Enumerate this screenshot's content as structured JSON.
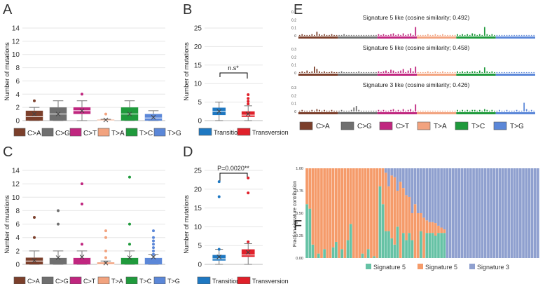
{
  "colors": {
    "ca": "#7b3f2b",
    "cg": "#6f6f6f",
    "ct": "#c0267f",
    "ta": "#f2a37f",
    "tc": "#1f9a3c",
    "tg": "#5b87d8",
    "transition": "#1e78c2",
    "transversion": "#e0202a",
    "sig5a": "#66c2a5",
    "sig5b": "#f59b6a",
    "sig3": "#8fa0cf"
  },
  "panel_letters": [
    "A",
    "B",
    "C",
    "D",
    "E",
    "F"
  ],
  "chart_data": [
    {
      "id": "A",
      "type": "box",
      "ylabel": "Number of mutations",
      "ylim": [
        0,
        14
      ],
      "yticks": [
        0,
        2,
        4,
        6,
        8,
        10,
        12,
        14
      ],
      "boxes": [
        {
          "name": "C>A",
          "color_key": "ca",
          "q1": 0,
          "median": 0.6,
          "q3": 1.5,
          "whisker_low": 0,
          "whisker_high": 2,
          "mean": 1.0,
          "outliers": [
            3
          ]
        },
        {
          "name": "C>G",
          "color_key": "cg",
          "q1": 0,
          "median": 1.0,
          "q3": 2,
          "whisker_low": 0,
          "whisker_high": 3,
          "mean": 1.0,
          "outliers": []
        },
        {
          "name": "C>T",
          "color_key": "ct",
          "q1": 1,
          "median": 1.5,
          "q3": 2,
          "whisker_low": 0,
          "whisker_high": 3,
          "mean": 1.5,
          "outliers": [
            4
          ]
        },
        {
          "name": "T>A",
          "color_key": "ta",
          "q1": 0,
          "median": 0,
          "q3": 0.15,
          "whisker_low": 0,
          "whisker_high": 0.2,
          "mean": 0.1,
          "outliers": [
            1
          ]
        },
        {
          "name": "T>C",
          "color_key": "tc",
          "q1": 0,
          "median": 1.0,
          "q3": 2,
          "whisker_low": 0,
          "whisker_high": 3,
          "mean": 1.0,
          "outliers": []
        },
        {
          "name": "T>G",
          "color_key": "tg",
          "q1": 0,
          "median": 0.4,
          "q3": 1,
          "whisker_low": 0,
          "whisker_high": 1.5,
          "mean": 0.5,
          "outliers": []
        }
      ]
    },
    {
      "id": "B",
      "type": "box",
      "ylabel": "Number of mutations",
      "ylim": [
        0,
        25
      ],
      "yticks": [
        0,
        5,
        10,
        15,
        20,
        25
      ],
      "bracket_label": "n.s*",
      "boxes": [
        {
          "name": "Transition",
          "color_key": "transition",
          "q1": 1.5,
          "median": 2.5,
          "q3": 3.5,
          "whisker_low": 0,
          "whisker_high": 5,
          "mean": 2.5,
          "outliers": []
        },
        {
          "name": "Transversion",
          "color_key": "transversion",
          "q1": 1,
          "median": 1.5,
          "q3": 2.5,
          "whisker_low": 0,
          "whisker_high": 4,
          "mean": 1.8,
          "outliers": [
            4.5,
            5.2,
            6,
            7
          ]
        }
      ]
    },
    {
      "id": "C",
      "type": "box",
      "ylabel": "Number of mutations",
      "ylim": [
        0,
        14
      ],
      "yticks": [
        0,
        2,
        4,
        6,
        8,
        10,
        12,
        14
      ],
      "boxes": [
        {
          "name": "C>A",
          "color_key": "ca",
          "q1": 0,
          "median": 0.5,
          "q3": 1,
          "whisker_low": 0,
          "whisker_high": 2,
          "mean": 0.6,
          "outliers": [
            4,
            7
          ]
        },
        {
          "name": "C>G",
          "color_key": "cg",
          "q1": 0,
          "median": 1,
          "q3": 1,
          "whisker_low": 0,
          "whisker_high": 2,
          "mean": 1.0,
          "outliers": [
            6,
            8
          ]
        },
        {
          "name": "C>T",
          "color_key": "ct",
          "q1": 0,
          "median": 1,
          "q3": 1,
          "whisker_low": 0,
          "whisker_high": 2,
          "mean": 1.1,
          "outliers": [
            3,
            9,
            12
          ]
        },
        {
          "name": "T>A",
          "color_key": "ta",
          "q1": 0,
          "median": 0,
          "q3": 0.3,
          "whisker_low": 0,
          "whisker_high": 0.5,
          "mean": 0.2,
          "outliers": [
            1,
            2,
            4,
            5
          ]
        },
        {
          "name": "T>C",
          "color_key": "tc",
          "q1": 0,
          "median": 1,
          "q3": 1,
          "whisker_low": 0,
          "whisker_high": 2,
          "mean": 1.0,
          "outliers": [
            3,
            6,
            13
          ]
        },
        {
          "name": "T>G",
          "color_key": "tg",
          "q1": 0,
          "median": 1,
          "q3": 1,
          "whisker_low": 0,
          "whisker_high": 1.5,
          "mean": 1.1,
          "outliers": [
            1.5,
            2,
            2.5,
            3,
            3.5,
            4,
            5
          ]
        }
      ]
    },
    {
      "id": "D",
      "type": "box",
      "ylabel": "Number of mutations",
      "ylim": [
        0,
        25
      ],
      "yticks": [
        0,
        5,
        10,
        15,
        20,
        25
      ],
      "bracket_label": "P=0.0020**",
      "boxes": [
        {
          "name": "Transition",
          "color_key": "transition",
          "q1": 1,
          "median": 1.5,
          "q3": 2.5,
          "whisker_low": 0,
          "whisker_high": 4,
          "mean": 2.0,
          "outliers": [
            4,
            18,
            22
          ]
        },
        {
          "name": "Transversion",
          "color_key": "transversion",
          "q1": 2,
          "median": 2.5,
          "q3": 4,
          "whisker_low": 0,
          "whisker_high": 5.5,
          "mean": 3.2,
          "outliers": [
            6,
            19,
            23
          ]
        }
      ]
    },
    {
      "id": "E",
      "type": "bar",
      "ylim": [
        0,
        0.3
      ],
      "yticks": [
        0,
        0.1,
        0.2,
        0.3
      ],
      "categories_legend": [
        "C>A",
        "C>G",
        "C>T",
        "T>A",
        "T>C",
        "T>G"
      ],
      "subplots": [
        {
          "title": "Signature 5 like (cosine similarity; 0.492)",
          "values": [
            0.01,
            0.02,
            0.01,
            0.01,
            0.01,
            0.02,
            0.01,
            0.05,
            0.02,
            0.01,
            0.02,
            0.01,
            0.01,
            0.02,
            0.01,
            0.01,
            0.01,
            0.01,
            0.02,
            0.01,
            0.01,
            0.01,
            0.01,
            0.01,
            0.01,
            0.01,
            0.01,
            0.01,
            0.01,
            0.01,
            0.01,
            0.01,
            0.02,
            0.01,
            0.02,
            0.01,
            0.01,
            0.02,
            0.03,
            0.01,
            0.02,
            0.01,
            0.03,
            0.01,
            0.02,
            0.03,
            0.01,
            0.11,
            0.01,
            0.01,
            0.01,
            0.01,
            0.02,
            0.01,
            0.01,
            0.02,
            0.01,
            0.01,
            0.02,
            0.01,
            0.01,
            0.01,
            0.01,
            0.01,
            0.02,
            0.01,
            0.02,
            0.01,
            0.02,
            0.01,
            0.03,
            0.02,
            0.01,
            0.02,
            0.01,
            0.11,
            0.02,
            0.01,
            0.02,
            0.01,
            0.01,
            0.01,
            0.01,
            0.01,
            0.01,
            0.01,
            0.01,
            0.01,
            0.01,
            0.01,
            0.01,
            0.01,
            0.01,
            0.01,
            0.01,
            0.01
          ]
        },
        {
          "title": "Signature 5 like (cosine similarity; 0.458)",
          "values": [
            0.01,
            0.02,
            0.01,
            0.03,
            0.01,
            0.02,
            0.08,
            0.05,
            0.02,
            0.01,
            0.02,
            0.01,
            0.01,
            0.02,
            0.01,
            0.01,
            0.01,
            0.02,
            0.01,
            0.01,
            0.01,
            0.01,
            0.01,
            0.01,
            0.02,
            0.01,
            0.01,
            0.01,
            0.01,
            0.01,
            0.01,
            0.01,
            0.02,
            0.01,
            0.02,
            0.03,
            0.01,
            0.04,
            0.03,
            0.01,
            0.02,
            0.03,
            0.05,
            0.01,
            0.03,
            0.06,
            0.02,
            0.08,
            0.01,
            0.01,
            0.01,
            0.01,
            0.02,
            0.01,
            0.01,
            0.02,
            0.01,
            0.01,
            0.02,
            0.01,
            0.01,
            0.01,
            0.01,
            0.01,
            0.02,
            0.01,
            0.02,
            0.01,
            0.02,
            0.01,
            0.02,
            0.02,
            0.01,
            0.03,
            0.01,
            0.07,
            0.02,
            0.01,
            0.02,
            0.01,
            0.01,
            0.01,
            0.01,
            0.01,
            0.01,
            0.01,
            0.01,
            0.01,
            0.01,
            0.01,
            0.01,
            0.01,
            0.01,
            0.01,
            0.01,
            0.01
          ]
        },
        {
          "title": "Signature 3 like (cosine similarity; 0.426)",
          "values": [
            0.01,
            0.02,
            0.01,
            0.01,
            0.01,
            0.02,
            0.01,
            0.03,
            0.02,
            0.01,
            0.02,
            0.01,
            0.01,
            0.02,
            0.01,
            0.01,
            0.01,
            0.02,
            0.01,
            0.01,
            0.01,
            0.02,
            0.05,
            0.07,
            0.02,
            0.01,
            0.01,
            0.01,
            0.01,
            0.01,
            0.01,
            0.01,
            0.02,
            0.01,
            0.02,
            0.01,
            0.01,
            0.02,
            0.03,
            0.01,
            0.02,
            0.01,
            0.03,
            0.01,
            0.02,
            0.03,
            0.01,
            0.09,
            0.01,
            0.01,
            0.01,
            0.01,
            0.01,
            0.01,
            0.01,
            0.01,
            0.01,
            0.01,
            0.01,
            0.01,
            0.01,
            0.01,
            0.01,
            0.01,
            0.02,
            0.01,
            0.02,
            0.01,
            0.02,
            0.01,
            0.02,
            0.02,
            0.01,
            0.02,
            0.01,
            0.03,
            0.02,
            0.01,
            0.02,
            0.01,
            0.01,
            0.02,
            0.01,
            0.01,
            0.02,
            0.01,
            0.01,
            0.01,
            0.02,
            0.01,
            0.01,
            0.11,
            0.03,
            0.01,
            0.02,
            0.01
          ]
        }
      ]
    },
    {
      "id": "F",
      "type": "stacked_bar",
      "ylabel": "Fraction signature contribution",
      "ylim": [
        0,
        1
      ],
      "yticks": [
        "0.00",
        "0.25",
        "0.50",
        "0.75",
        "1.00"
      ],
      "legend": [
        "Signature 5",
        "Signature 5",
        "Signature 3"
      ],
      "sig5a": [
        0.6,
        0.55,
        0.15,
        0.0,
        0.05,
        0.0,
        0.1,
        0.0,
        0.0,
        0.12,
        0.18,
        0.0,
        0.1,
        0.0,
        0.2,
        0.38,
        0.0,
        0.0,
        0.0,
        0.05,
        0.0,
        0.1,
        0.0,
        0.02,
        0.0,
        0.8,
        0.6,
        0.3,
        0.3,
        0.22,
        0.15,
        0.35,
        0.0,
        0.28,
        0.2,
        0.28,
        0.2,
        0.0,
        0.0,
        0.3,
        0.0,
        0.28,
        0.28,
        0.28,
        0.25,
        0.28,
        0.28,
        0.28,
        0.0,
        0.0,
        0.0,
        0.0,
        0.0,
        0.0,
        0.0,
        0.0,
        0.0,
        0.0,
        0.0,
        0.0,
        0.0,
        0.0,
        0.0,
        0.0,
        0.0,
        0.0,
        0.0,
        0.0,
        0.0,
        0.0,
        0.0,
        0.0,
        0.0,
        0.0,
        0.0,
        0.0,
        0.0,
        0.0,
        0.0,
        0.0
      ],
      "sig5b": [
        0.4,
        0.45,
        0.85,
        1.0,
        0.95,
        1.0,
        0.9,
        1.0,
        1.0,
        0.88,
        0.82,
        1.0,
        0.9,
        1.0,
        0.8,
        0.62,
        1.0,
        1.0,
        1.0,
        0.95,
        1.0,
        0.9,
        1.0,
        0.98,
        1.0,
        0.2,
        0.4,
        0.65,
        0.5,
        0.7,
        0.75,
        0.4,
        0.85,
        0.5,
        0.5,
        0.4,
        0.3,
        0.6,
        0.5,
        0.2,
        0.45,
        0.14,
        0.12,
        0.12,
        0.14,
        0.08,
        0.06,
        0.04,
        0.0,
        0.0,
        0.0,
        0.0,
        0.0,
        0.0,
        0.0,
        0.0,
        0.0,
        0.0,
        0.0,
        0.0,
        0.0,
        0.0,
        0.0,
        0.0,
        0.0,
        0.0,
        0.0,
        0.0,
        0.0,
        0.0,
        0.0,
        0.0,
        0.0,
        0.0,
        0.0,
        0.0,
        0.0,
        0.0,
        0.0,
        0.0
      ]
    }
  ]
}
